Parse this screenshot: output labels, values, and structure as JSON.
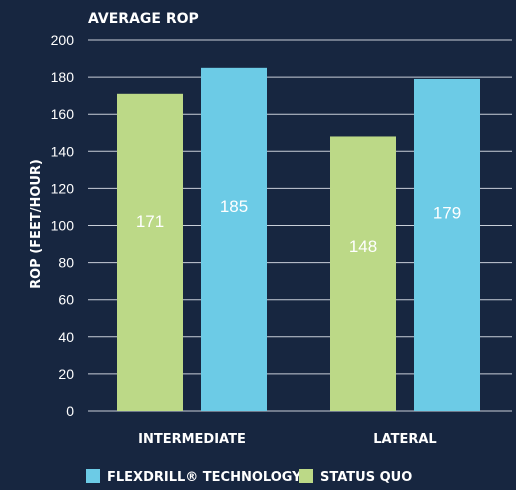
{
  "chart_data": {
    "type": "bar",
    "title": "AVERAGE ROP",
    "ylabel": "ROP (FEET/HOUR)",
    "xlabel": "",
    "ylim": [
      0,
      200
    ],
    "yticks": [
      0,
      20,
      40,
      60,
      80,
      100,
      120,
      140,
      160,
      180,
      200
    ],
    "grid": true,
    "legend_position": "bottom",
    "categories": [
      "INTERMEDIATE",
      "LATERAL"
    ],
    "series": [
      {
        "name": "STATUS QUO",
        "values": [
          171,
          148
        ],
        "color": "#bcd987"
      },
      {
        "name": "FLEXDRILL® TECHNOLOGY",
        "values": [
          185,
          179
        ],
        "color": "#6ccbe6"
      }
    ],
    "legend": [
      {
        "name": "FLEXDRILL® TECHNOLOGY",
        "color": "#6ccbe6"
      },
      {
        "name": "STATUS QUO",
        "color": "#bcd987"
      }
    ],
    "background_color": "#172640",
    "grid_color": "#c8ced8"
  }
}
